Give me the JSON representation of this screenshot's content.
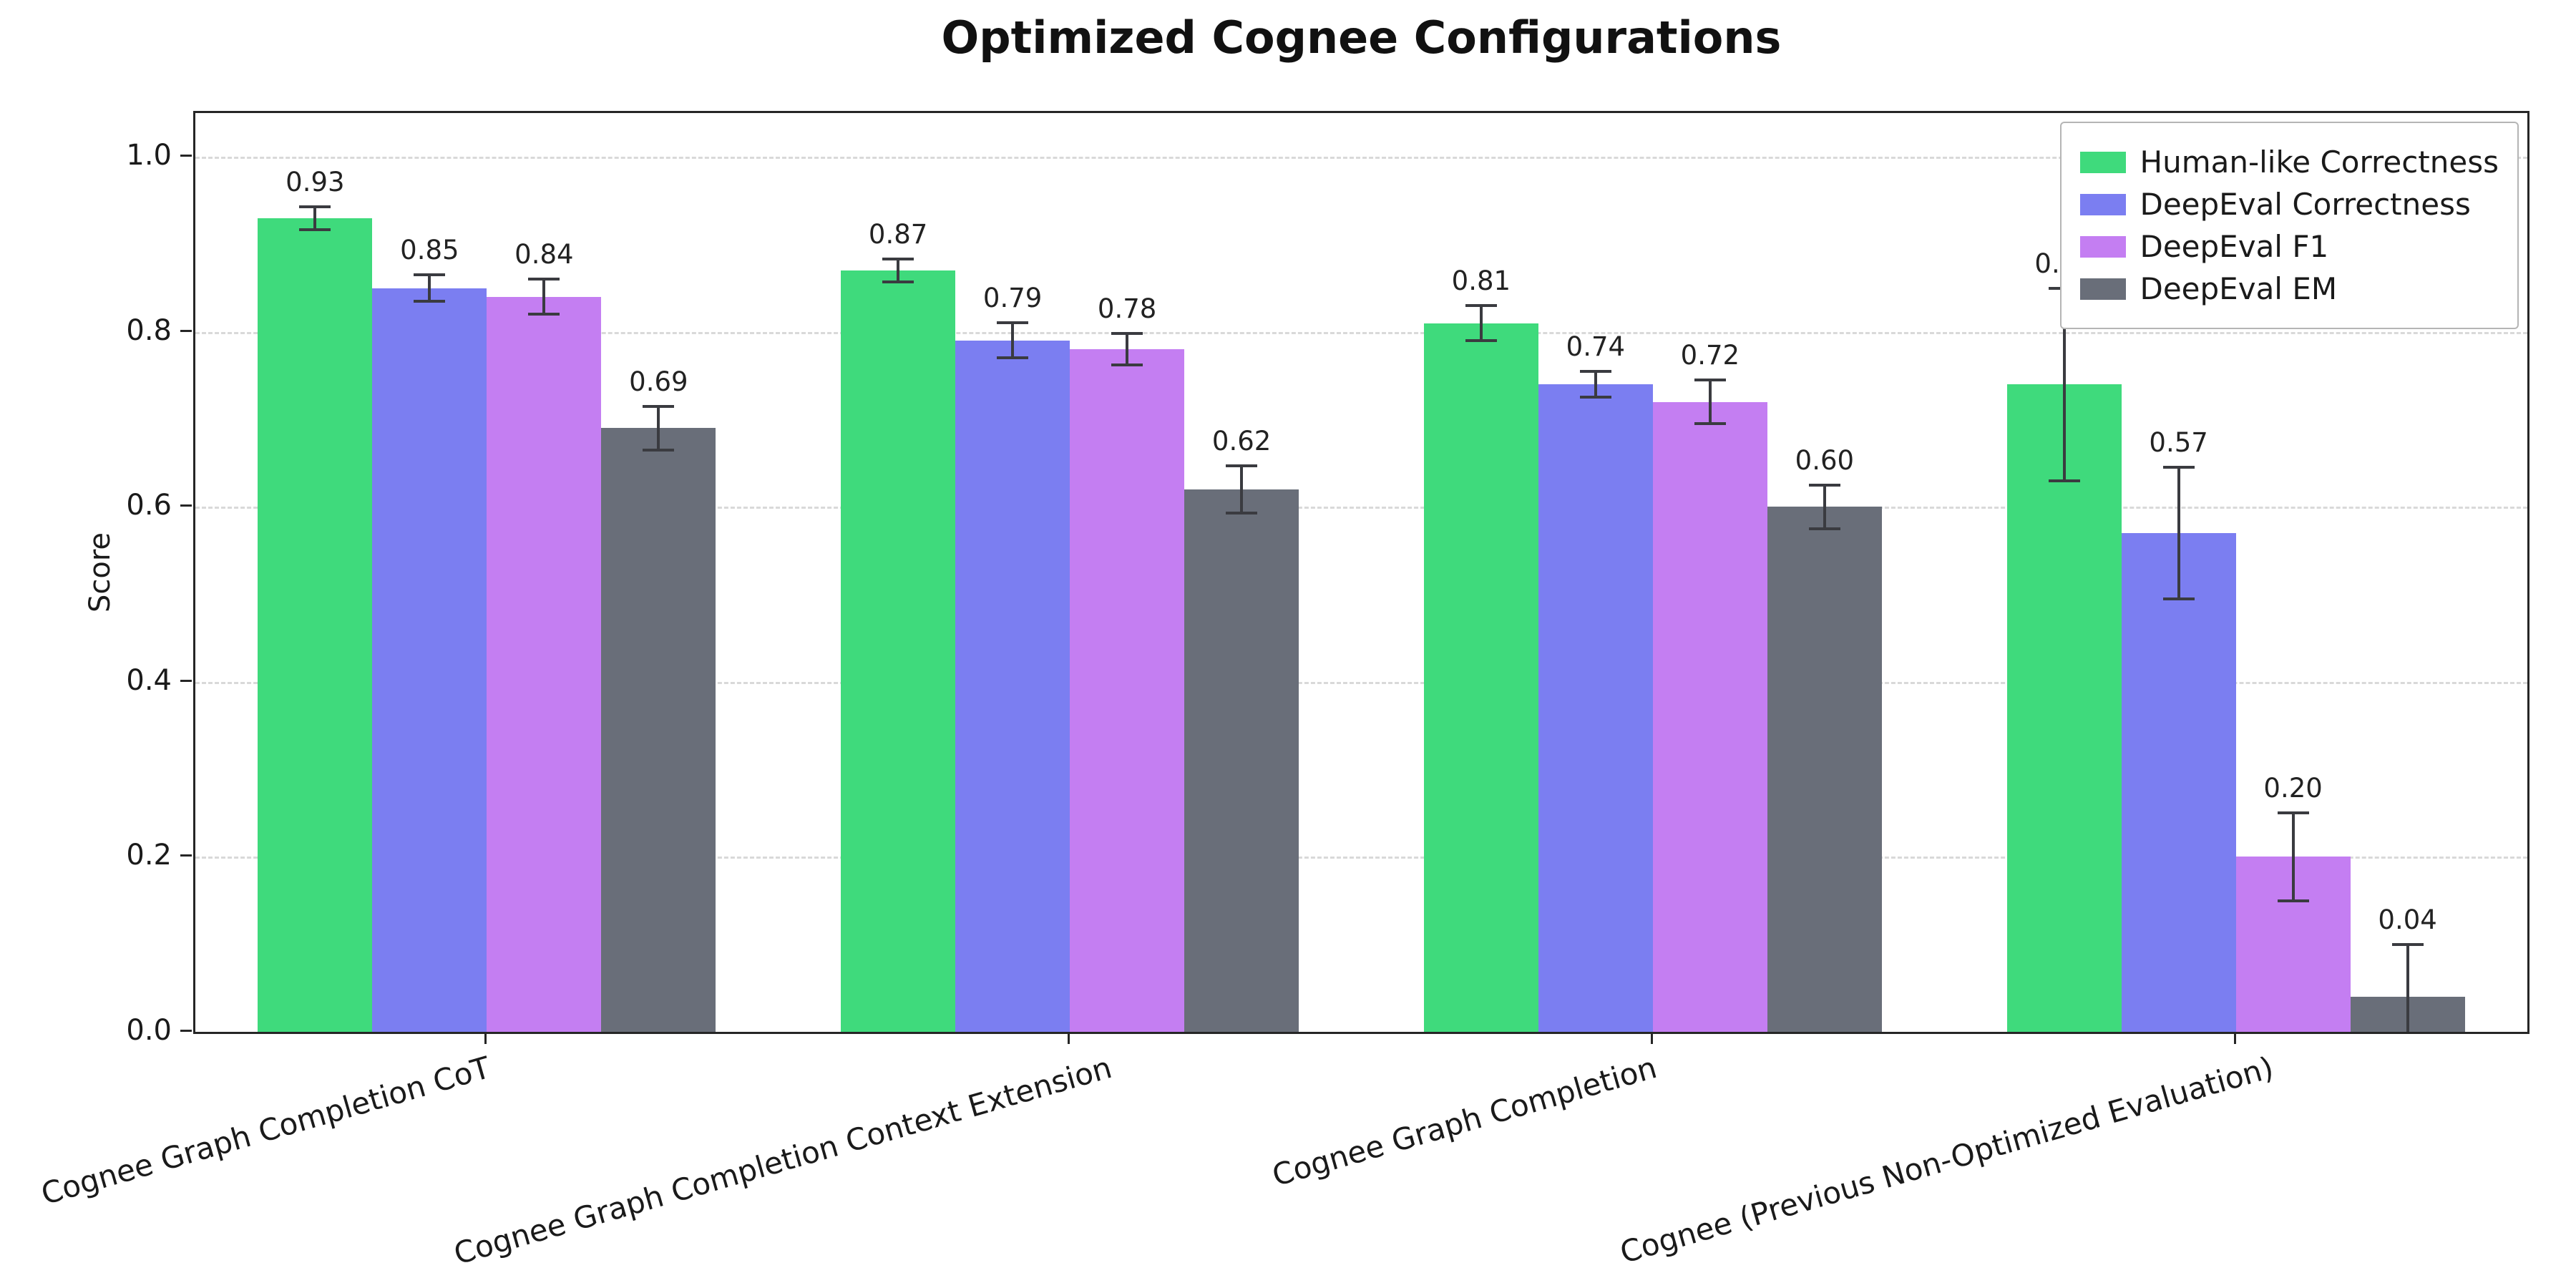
{
  "title": "Optimized Cognee Configurations",
  "chart_data": {
    "type": "bar",
    "title": "Optimized Cognee Configurations",
    "xlabel": "",
    "ylabel": "Score",
    "ylim": [
      0,
      1.05
    ],
    "yticks": [
      "0.0",
      "0.2",
      "0.4",
      "0.6",
      "0.8",
      "1.0"
    ],
    "grid": "horizontal-dashed",
    "legend_position": "upper-right",
    "categories": [
      "Cognee Graph Completion CoT",
      "Cognee Graph Completion Context Extension",
      "Cognee Graph Completion",
      "Cognee (Previous Non-Optimized Evaluation)"
    ],
    "series": [
      {
        "name": "Human-like Correctness",
        "color": "#3fda7c",
        "values": [
          0.93,
          0.87,
          0.81,
          0.74
        ],
        "errors": [
          0.013,
          0.013,
          0.02,
          0.11
        ],
        "labels": [
          "0.93",
          "0.87",
          "0.81",
          "0.74"
        ]
      },
      {
        "name": "DeepEval Correctness",
        "color": "#7b7ef1",
        "values": [
          0.85,
          0.79,
          0.74,
          0.57
        ],
        "errors": [
          0.015,
          0.02,
          0.015,
          0.075
        ],
        "labels": [
          "0.85",
          "0.79",
          "0.74",
          "0.57"
        ]
      },
      {
        "name": "DeepEval F1",
        "color": "#c47ef2",
        "values": [
          0.84,
          0.78,
          0.72,
          0.2
        ],
        "errors": [
          0.02,
          0.018,
          0.025,
          0.05
        ],
        "labels": [
          "0.84",
          "0.78",
          "0.72",
          "0.20"
        ]
      },
      {
        "name": "DeepEval EM",
        "color": "#696e79",
        "values": [
          0.69,
          0.62,
          0.6,
          0.04
        ],
        "errors": [
          0.025,
          0.027,
          0.025,
          0.06
        ],
        "labels": [
          "0.69",
          "0.62",
          "0.60",
          "0.04"
        ]
      }
    ]
  }
}
